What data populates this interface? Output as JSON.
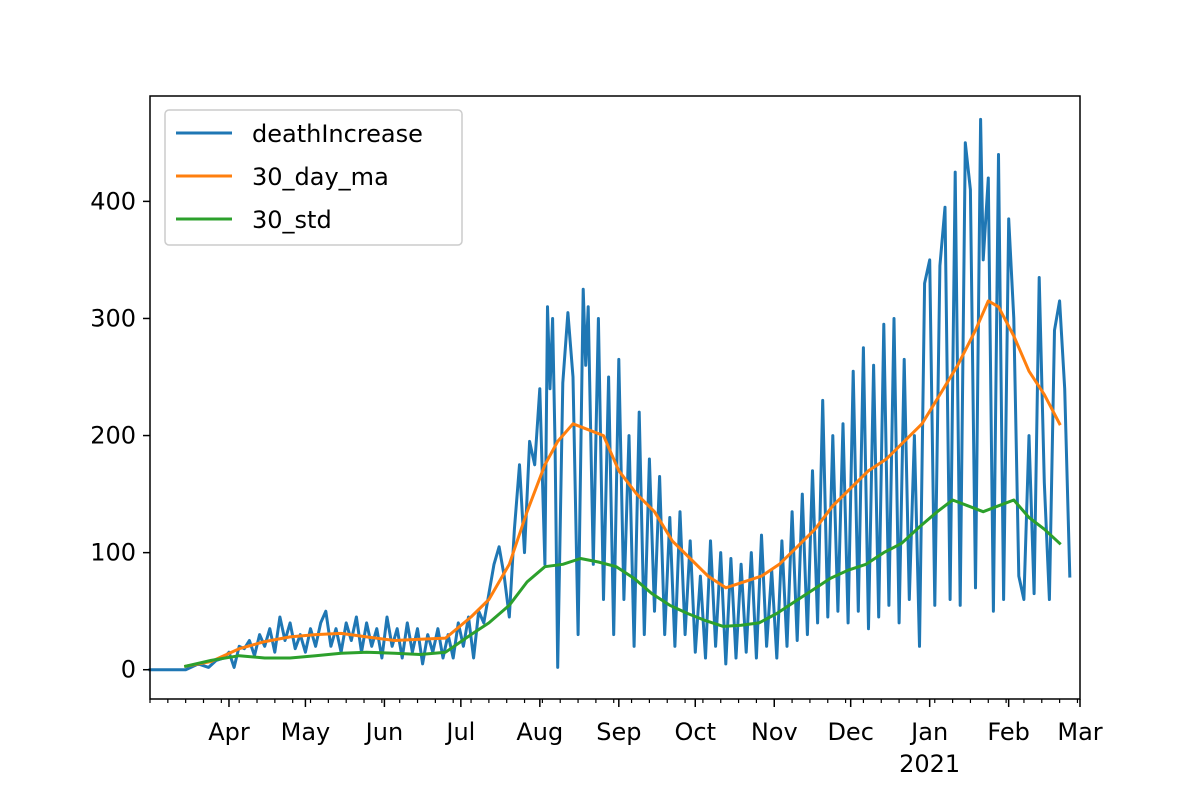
{
  "chart_data": {
    "type": "line",
    "title": "",
    "xlabel": "",
    "ylabel": "",
    "ylim": [
      -25,
      490
    ],
    "xlim": [
      "2020-03-01",
      "2021-03-01"
    ],
    "grid": false,
    "legend_position": "top-left",
    "x_tick_labels": [
      {
        "date": "2020-04-01",
        "label": "Apr"
      },
      {
        "date": "2020-05-01",
        "label": "May"
      },
      {
        "date": "2020-06-01",
        "label": "Jun"
      },
      {
        "date": "2020-07-01",
        "label": "Jul"
      },
      {
        "date": "2020-08-01",
        "label": "Aug"
      },
      {
        "date": "2020-09-01",
        "label": "Sep"
      },
      {
        "date": "2020-10-01",
        "label": "Oct"
      },
      {
        "date": "2020-11-01",
        "label": "Nov"
      },
      {
        "date": "2020-12-01",
        "label": "Dec"
      },
      {
        "date": "2021-01-01",
        "label": "Jan"
      },
      {
        "date": "2021-02-01",
        "label": "Feb"
      },
      {
        "date": "2021-03-01",
        "label": "Mar"
      }
    ],
    "x_year_label": {
      "date": "2021-01-01",
      "label": "2021"
    },
    "y_ticks": [
      0,
      100,
      200,
      300,
      400
    ],
    "series": [
      {
        "name": "deathIncrease",
        "color": "#1f77b4",
        "points": [
          [
            "2020-03-01",
            0
          ],
          [
            "2020-03-15",
            0
          ],
          [
            "2020-03-20",
            5
          ],
          [
            "2020-03-24",
            2
          ],
          [
            "2020-03-27",
            8
          ],
          [
            "2020-03-30",
            10
          ],
          [
            "2020-04-01",
            15
          ],
          [
            "2020-04-03",
            2
          ],
          [
            "2020-04-05",
            20
          ],
          [
            "2020-04-07",
            18
          ],
          [
            "2020-04-09",
            25
          ],
          [
            "2020-04-11",
            12
          ],
          [
            "2020-04-13",
            30
          ],
          [
            "2020-04-15",
            20
          ],
          [
            "2020-04-17",
            35
          ],
          [
            "2020-04-19",
            15
          ],
          [
            "2020-04-21",
            45
          ],
          [
            "2020-04-23",
            25
          ],
          [
            "2020-04-25",
            40
          ],
          [
            "2020-04-27",
            18
          ],
          [
            "2020-04-29",
            30
          ],
          [
            "2020-05-01",
            15
          ],
          [
            "2020-05-03",
            35
          ],
          [
            "2020-05-05",
            20
          ],
          [
            "2020-05-07",
            40
          ],
          [
            "2020-05-09",
            50
          ],
          [
            "2020-05-11",
            20
          ],
          [
            "2020-05-13",
            35
          ],
          [
            "2020-05-15",
            15
          ],
          [
            "2020-05-17",
            40
          ],
          [
            "2020-05-19",
            25
          ],
          [
            "2020-05-21",
            45
          ],
          [
            "2020-05-23",
            15
          ],
          [
            "2020-05-25",
            40
          ],
          [
            "2020-05-27",
            20
          ],
          [
            "2020-05-29",
            35
          ],
          [
            "2020-05-31",
            10
          ],
          [
            "2020-06-02",
            45
          ],
          [
            "2020-06-04",
            20
          ],
          [
            "2020-06-06",
            35
          ],
          [
            "2020-06-08",
            10
          ],
          [
            "2020-06-10",
            40
          ],
          [
            "2020-06-12",
            15
          ],
          [
            "2020-06-14",
            35
          ],
          [
            "2020-06-16",
            5
          ],
          [
            "2020-06-18",
            30
          ],
          [
            "2020-06-20",
            15
          ],
          [
            "2020-06-22",
            35
          ],
          [
            "2020-06-24",
            10
          ],
          [
            "2020-06-26",
            30
          ],
          [
            "2020-06-28",
            10
          ],
          [
            "2020-06-30",
            40
          ],
          [
            "2020-07-02",
            20
          ],
          [
            "2020-07-04",
            45
          ],
          [
            "2020-07-06",
            10
          ],
          [
            "2020-07-08",
            50
          ],
          [
            "2020-07-10",
            40
          ],
          [
            "2020-07-12",
            65
          ],
          [
            "2020-07-14",
            90
          ],
          [
            "2020-07-16",
            105
          ],
          [
            "2020-07-18",
            80
          ],
          [
            "2020-07-20",
            45
          ],
          [
            "2020-07-22",
            120
          ],
          [
            "2020-07-24",
            175
          ],
          [
            "2020-07-26",
            100
          ],
          [
            "2020-07-28",
            195
          ],
          [
            "2020-07-30",
            175
          ],
          [
            "2020-08-01",
            240
          ],
          [
            "2020-08-03",
            90
          ],
          [
            "2020-08-04",
            310
          ],
          [
            "2020-08-05",
            240
          ],
          [
            "2020-08-06",
            300
          ],
          [
            "2020-08-07",
            190
          ],
          [
            "2020-08-08",
            2
          ],
          [
            "2020-08-10",
            245
          ],
          [
            "2020-08-12",
            305
          ],
          [
            "2020-08-14",
            250
          ],
          [
            "2020-08-16",
            30
          ],
          [
            "2020-08-18",
            325
          ],
          [
            "2020-08-19",
            260
          ],
          [
            "2020-08-20",
            310
          ],
          [
            "2020-08-22",
            90
          ],
          [
            "2020-08-24",
            300
          ],
          [
            "2020-08-26",
            60
          ],
          [
            "2020-08-28",
            250
          ],
          [
            "2020-08-30",
            30
          ],
          [
            "2020-09-01",
            265
          ],
          [
            "2020-09-03",
            60
          ],
          [
            "2020-09-05",
            200
          ],
          [
            "2020-09-07",
            20
          ],
          [
            "2020-09-09",
            220
          ],
          [
            "2020-09-11",
            30
          ],
          [
            "2020-09-13",
            180
          ],
          [
            "2020-09-15",
            50
          ],
          [
            "2020-09-17",
            165
          ],
          [
            "2020-09-19",
            30
          ],
          [
            "2020-09-21",
            130
          ],
          [
            "2020-09-23",
            20
          ],
          [
            "2020-09-25",
            135
          ],
          [
            "2020-09-27",
            30
          ],
          [
            "2020-09-29",
            110
          ],
          [
            "2020-10-01",
            15
          ],
          [
            "2020-10-03",
            80
          ],
          [
            "2020-10-05",
            10
          ],
          [
            "2020-10-07",
            110
          ],
          [
            "2020-10-09",
            20
          ],
          [
            "2020-10-11",
            100
          ],
          [
            "2020-10-13",
            5
          ],
          [
            "2020-10-15",
            95
          ],
          [
            "2020-10-17",
            10
          ],
          [
            "2020-10-19",
            90
          ],
          [
            "2020-10-21",
            15
          ],
          [
            "2020-10-23",
            100
          ],
          [
            "2020-10-25",
            10
          ],
          [
            "2020-10-27",
            115
          ],
          [
            "2020-10-29",
            20
          ],
          [
            "2020-10-31",
            85
          ],
          [
            "2020-11-02",
            10
          ],
          [
            "2020-11-04",
            110
          ],
          [
            "2020-11-06",
            20
          ],
          [
            "2020-11-08",
            135
          ],
          [
            "2020-11-10",
            25
          ],
          [
            "2020-11-12",
            150
          ],
          [
            "2020-11-14",
            30
          ],
          [
            "2020-11-16",
            170
          ],
          [
            "2020-11-18",
            40
          ],
          [
            "2020-11-20",
            230
          ],
          [
            "2020-11-22",
            45
          ],
          [
            "2020-11-24",
            200
          ],
          [
            "2020-11-26",
            50
          ],
          [
            "2020-11-28",
            210
          ],
          [
            "2020-11-30",
            40
          ],
          [
            "2020-12-02",
            255
          ],
          [
            "2020-12-04",
            50
          ],
          [
            "2020-12-06",
            275
          ],
          [
            "2020-12-08",
            35
          ],
          [
            "2020-12-10",
            260
          ],
          [
            "2020-12-12",
            45
          ],
          [
            "2020-12-14",
            295
          ],
          [
            "2020-12-16",
            55
          ],
          [
            "2020-12-18",
            300
          ],
          [
            "2020-12-20",
            40
          ],
          [
            "2020-12-22",
            265
          ],
          [
            "2020-12-24",
            60
          ],
          [
            "2020-12-26",
            200
          ],
          [
            "2020-12-28",
            20
          ],
          [
            "2020-12-30",
            330
          ],
          [
            "2021-01-01",
            350
          ],
          [
            "2021-01-03",
            55
          ],
          [
            "2021-01-05",
            345
          ],
          [
            "2021-01-07",
            395
          ],
          [
            "2021-01-09",
            60
          ],
          [
            "2021-01-11",
            425
          ],
          [
            "2021-01-13",
            55
          ],
          [
            "2021-01-15",
            450
          ],
          [
            "2021-01-17",
            410
          ],
          [
            "2021-01-19",
            70
          ],
          [
            "2021-01-21",
            470
          ],
          [
            "2021-01-22",
            350
          ],
          [
            "2021-01-24",
            420
          ],
          [
            "2021-01-26",
            50
          ],
          [
            "2021-01-28",
            440
          ],
          [
            "2021-01-30",
            60
          ],
          [
            "2021-02-01",
            385
          ],
          [
            "2021-02-03",
            300
          ],
          [
            "2021-02-05",
            80
          ],
          [
            "2021-02-07",
            60
          ],
          [
            "2021-02-09",
            200
          ],
          [
            "2021-02-11",
            65
          ],
          [
            "2021-02-13",
            335
          ],
          [
            "2021-02-15",
            160
          ],
          [
            "2021-02-17",
            60
          ],
          [
            "2021-02-19",
            290
          ],
          [
            "2021-02-21",
            315
          ],
          [
            "2021-02-23",
            240
          ],
          [
            "2021-02-25",
            80
          ]
        ]
      },
      {
        "name": "30_day_ma",
        "color": "#ff7f0e",
        "points": [
          [
            "2020-03-15",
            3
          ],
          [
            "2020-03-25",
            7
          ],
          [
            "2020-04-05",
            18
          ],
          [
            "2020-04-15",
            24
          ],
          [
            "2020-04-25",
            28
          ],
          [
            "2020-05-05",
            30
          ],
          [
            "2020-05-15",
            31
          ],
          [
            "2020-05-25",
            28
          ],
          [
            "2020-06-05",
            25
          ],
          [
            "2020-06-15",
            26
          ],
          [
            "2020-06-25",
            27
          ],
          [
            "2020-07-05",
            45
          ],
          [
            "2020-07-12",
            60
          ],
          [
            "2020-07-20",
            90
          ],
          [
            "2020-07-27",
            135
          ],
          [
            "2020-08-03",
            175
          ],
          [
            "2020-08-08",
            195
          ],
          [
            "2020-08-14",
            210
          ],
          [
            "2020-08-20",
            205
          ],
          [
            "2020-08-26",
            200
          ],
          [
            "2020-09-01",
            170
          ],
          [
            "2020-09-08",
            150
          ],
          [
            "2020-09-15",
            135
          ],
          [
            "2020-09-22",
            110
          ],
          [
            "2020-09-29",
            95
          ],
          [
            "2020-10-06",
            80
          ],
          [
            "2020-10-13",
            70
          ],
          [
            "2020-10-20",
            75
          ],
          [
            "2020-10-27",
            80
          ],
          [
            "2020-11-03",
            90
          ],
          [
            "2020-11-10",
            105
          ],
          [
            "2020-11-17",
            120
          ],
          [
            "2020-11-24",
            140
          ],
          [
            "2020-12-01",
            155
          ],
          [
            "2020-12-08",
            170
          ],
          [
            "2020-12-15",
            180
          ],
          [
            "2020-12-22",
            195
          ],
          [
            "2020-12-29",
            210
          ],
          [
            "2021-01-05",
            235
          ],
          [
            "2021-01-12",
            260
          ],
          [
            "2021-01-19",
            290
          ],
          [
            "2021-01-24",
            315
          ],
          [
            "2021-01-28",
            310
          ],
          [
            "2021-02-03",
            285
          ],
          [
            "2021-02-09",
            255
          ],
          [
            "2021-02-15",
            235
          ],
          [
            "2021-02-21",
            210
          ]
        ]
      },
      {
        "name": "30_std",
        "color": "#2ca02c",
        "points": [
          [
            "2020-03-15",
            3
          ],
          [
            "2020-03-25",
            8
          ],
          [
            "2020-04-05",
            12
          ],
          [
            "2020-04-15",
            10
          ],
          [
            "2020-04-25",
            10
          ],
          [
            "2020-05-05",
            12
          ],
          [
            "2020-05-15",
            14
          ],
          [
            "2020-05-25",
            15
          ],
          [
            "2020-06-05",
            14
          ],
          [
            "2020-06-15",
            13
          ],
          [
            "2020-06-25",
            15
          ],
          [
            "2020-07-05",
            30
          ],
          [
            "2020-07-12",
            40
          ],
          [
            "2020-07-20",
            55
          ],
          [
            "2020-07-27",
            75
          ],
          [
            "2020-08-03",
            88
          ],
          [
            "2020-08-10",
            90
          ],
          [
            "2020-08-17",
            95
          ],
          [
            "2020-08-24",
            92
          ],
          [
            "2020-08-31",
            88
          ],
          [
            "2020-09-07",
            78
          ],
          [
            "2020-09-14",
            65
          ],
          [
            "2020-09-21",
            55
          ],
          [
            "2020-09-28",
            48
          ],
          [
            "2020-10-05",
            42
          ],
          [
            "2020-10-12",
            37
          ],
          [
            "2020-10-19",
            38
          ],
          [
            "2020-10-26",
            40
          ],
          [
            "2020-11-02",
            48
          ],
          [
            "2020-11-09",
            58
          ],
          [
            "2020-11-16",
            68
          ],
          [
            "2020-11-23",
            78
          ],
          [
            "2020-11-30",
            85
          ],
          [
            "2020-12-07",
            90
          ],
          [
            "2020-12-14",
            100
          ],
          [
            "2020-12-21",
            108
          ],
          [
            "2020-12-28",
            122
          ],
          [
            "2021-01-04",
            135
          ],
          [
            "2021-01-10",
            145
          ],
          [
            "2021-01-16",
            140
          ],
          [
            "2021-01-22",
            135
          ],
          [
            "2021-01-28",
            140
          ],
          [
            "2021-02-03",
            145
          ],
          [
            "2021-02-09",
            130
          ],
          [
            "2021-02-15",
            120
          ],
          [
            "2021-02-21",
            108
          ]
        ]
      }
    ]
  }
}
